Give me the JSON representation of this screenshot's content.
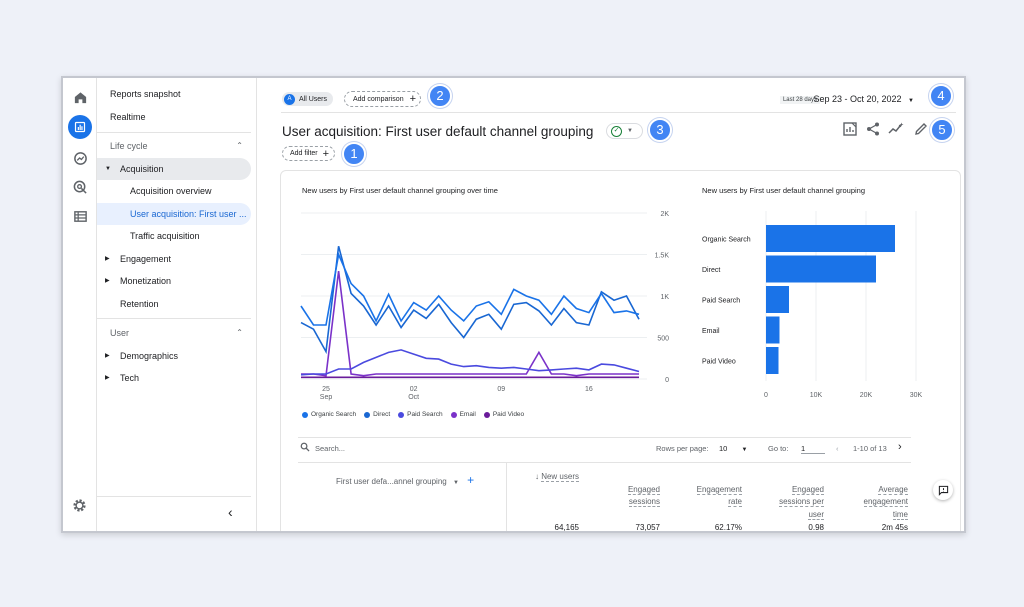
{
  "nav": {
    "reports_snapshot": "Reports snapshot",
    "realtime": "Realtime",
    "life_cycle": "Life cycle",
    "acquisition": "Acquisition",
    "acquisition_overview": "Acquisition overview",
    "user_acquisition": "User acquisition: First user ...",
    "traffic_acquisition": "Traffic acquisition",
    "engagement": "Engagement",
    "monetization": "Monetization",
    "retention": "Retention",
    "user": "User",
    "demographics": "Demographics",
    "tech": "Tech",
    "collapse": "‹"
  },
  "header": {
    "segment_avatar": "A",
    "segment_label": "All Users",
    "add_comparison": "Add comparison",
    "date_hint": "Last 28 days",
    "date_range": "Sep 23 - Oct 20, 2022",
    "title": "User acquisition: First user default channel grouping",
    "add_filter": "Add filter"
  },
  "callouts": [
    "1",
    "2",
    "3",
    "4",
    "5"
  ],
  "icons": {
    "rail": [
      "home-icon",
      "reports-icon",
      "explore-icon",
      "advertising-icon",
      "configure-icon"
    ],
    "tools": [
      "customize-report-icon",
      "share-icon",
      "insights-icon",
      "edit-icon"
    ],
    "settings": "settings-gear-icon",
    "feedback": "feedback-icon"
  },
  "colors": {
    "accent": "#1a73e8",
    "organic": "#1a73e8",
    "direct": "#1967d2",
    "paid_search": "#4a4adf",
    "email": "#7b32c9",
    "paid_video": "#6a1b9a",
    "callout": "#4285f4"
  },
  "chart_data": [
    {
      "type": "line",
      "title": "New users by First user default channel grouping over time",
      "x_ticks": [
        "25\nSep",
        "02\nOct",
        "09",
        "16"
      ],
      "y_ticks": [
        "0",
        "500",
        "1K",
        "1.5K",
        "2K"
      ],
      "ylim": [
        0,
        2000
      ],
      "x": [
        "Sep 23",
        "Sep 24",
        "Sep 25",
        "Sep 26",
        "Sep 27",
        "Sep 28",
        "Sep 29",
        "Sep 30",
        "Oct 1",
        "Oct 2",
        "Oct 3",
        "Oct 4",
        "Oct 5",
        "Oct 6",
        "Oct 7",
        "Oct 8",
        "Oct 9",
        "Oct 10",
        "Oct 11",
        "Oct 12",
        "Oct 13",
        "Oct 14",
        "Oct 15",
        "Oct 16",
        "Oct 17",
        "Oct 18",
        "Oct 19",
        "Oct 20"
      ],
      "series": [
        {
          "name": "Organic Search",
          "values": [
            880,
            650,
            650,
            1500,
            1150,
            1000,
            700,
            1020,
            700,
            920,
            830,
            1000,
            830,
            700,
            880,
            930,
            780,
            1080,
            1000,
            950,
            780,
            1000,
            850,
            800,
            1030,
            800,
            820,
            780
          ]
        },
        {
          "name": "Direct",
          "values": [
            680,
            600,
            330,
            1600,
            1030,
            880,
            650,
            880,
            620,
            830,
            730,
            900,
            680,
            500,
            720,
            780,
            600,
            900,
            920,
            820,
            650,
            850,
            680,
            650,
            1050,
            950,
            1000,
            720
          ]
        },
        {
          "name": "Paid Search",
          "values": [
            50,
            60,
            60,
            120,
            120,
            200,
            260,
            320,
            350,
            300,
            250,
            240,
            180,
            150,
            160,
            140,
            130,
            140,
            120,
            100,
            110,
            120,
            130,
            110,
            180,
            170,
            130,
            90
          ]
        },
        {
          "name": "Email",
          "values": [
            60,
            60,
            40,
            1300,
            60,
            40,
            60,
            60,
            60,
            60,
            60,
            60,
            60,
            60,
            60,
            60,
            60,
            60,
            60,
            320,
            60,
            60,
            40,
            60,
            60,
            60,
            60,
            60
          ]
        },
        {
          "name": "Paid Video",
          "values": [
            20,
            20,
            20,
            20,
            20,
            20,
            20,
            20,
            20,
            20,
            20,
            20,
            20,
            20,
            20,
            20,
            20,
            20,
            20,
            20,
            20,
            20,
            20,
            20,
            20,
            20,
            20,
            20
          ]
        }
      ]
    },
    {
      "type": "bar",
      "orientation": "horizontal",
      "title": "New users by First user default channel grouping",
      "categories": [
        "Organic Search",
        "Direct",
        "Paid Search",
        "Email",
        "Paid Video"
      ],
      "values": [
        25800,
        22000,
        4600,
        2700,
        2500
      ],
      "x_ticks": [
        "0",
        "10K",
        "20K",
        "30K"
      ],
      "xlim": [
        0,
        30000
      ]
    }
  ],
  "legend": [
    "Organic Search",
    "Direct",
    "Paid Search",
    "Email",
    "Paid Video"
  ],
  "table": {
    "search_placeholder": "Search...",
    "rows_per_page_label": "Rows per page:",
    "rows_per_page": "10",
    "goto_label": "Go to:",
    "goto_value": "1",
    "page_info": "1-10 of 13",
    "dimension_header": "First user defa...annel grouping",
    "columns": [
      "New users",
      "Engaged\nsessions",
      "Engagement\nrate",
      "Engaged\nsessions per\nuser",
      "Average\nengagement\ntime"
    ],
    "totals": [
      "64,165",
      "73,057",
      "62.17%",
      "0.98",
      "2m 45s"
    ]
  }
}
